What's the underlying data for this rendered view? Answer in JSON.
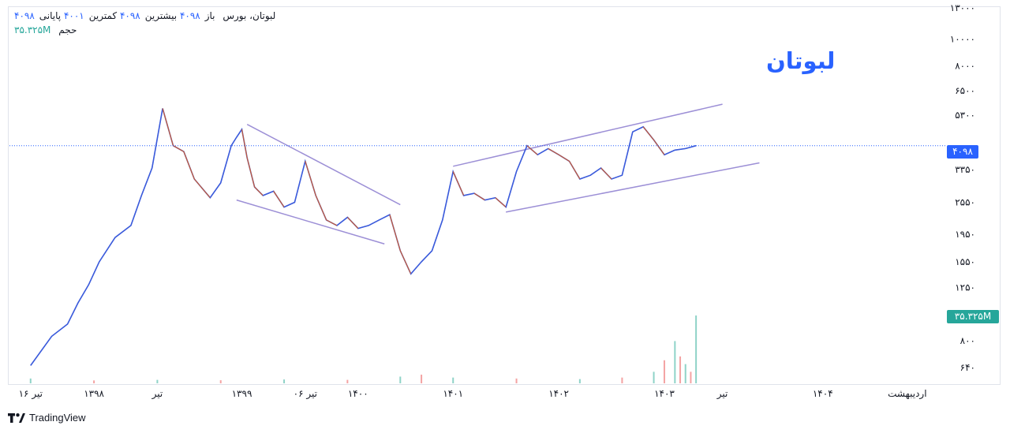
{
  "legend": {
    "symbol": "لبوتان، بورس",
    "open_label": "باز",
    "open_value": "۴۰۹۸",
    "high_label": "بیشترین",
    "high_value": "۴۰۹۸",
    "low_label": "کمترین",
    "low_value": "۴۰۰۱",
    "close_label": "پایانی",
    "close_value": "۴۰۹۸",
    "volume_label": "حجم",
    "volume_value": "۳۵.۳۲۵M"
  },
  "title_overlay": "لبوتان",
  "badges": {
    "last_price": "۴۰۹۸",
    "volume": "۳۵.۳۲۵M",
    "last_price_color": "#2962ff",
    "volume_color": "#26a69a"
  },
  "watermark": {
    "text": "TradingView",
    "icon": "tradingview-logo-icon"
  },
  "colors": {
    "up": "#3b5bdb",
    "down": "#e8590c",
    "trendline": "#9c8fd6",
    "volume_up": "#8fd3c8",
    "volume_down": "#f4a3a3",
    "price_line": "#2962ff"
  },
  "chart_data": {
    "type": "line",
    "scale": "log",
    "grid": false,
    "legend_placement": "top-left",
    "ylim": [
      560,
      13000
    ],
    "price_axis": {
      "ticks": [
        13000,
        10000,
        8000,
        6500,
        5300,
        3350,
        2550,
        1950,
        1550,
        1250,
        800,
        640
      ],
      "labels": [
        "۱۳۰۰۰",
        "۱۰۰۰۰",
        "۸۰۰۰",
        "۶۵۰۰",
        "۵۳۰۰",
        "۳۳۵۰",
        "۲۵۵۰",
        "۱۹۵۰",
        "۱۵۵۰",
        "۱۲۵۰",
        "۸۰۰",
        "۶۴۰"
      ]
    },
    "time_axis": {
      "labels": [
        "۱۶ تیر",
        "۱۳۹۸",
        "تیر",
        "۱۳۹۹",
        "۰۶ تیر",
        "۱۴۰۰",
        "۱۴۰۱",
        "۱۴۰۲",
        "۱۴۰۳",
        "تیر",
        "۱۴۰۴",
        "اردیبهشت"
      ],
      "positions": [
        0,
        0.6,
        1.2,
        2.0,
        2.6,
        3.1,
        4.0,
        5.0,
        6.0,
        6.55,
        7.5,
        8.3
      ]
    },
    "x_range": [
      -0.2,
      8.6
    ],
    "price_series": {
      "name": "لبوتان",
      "x": [
        0.0,
        0.2,
        0.35,
        0.45,
        0.55,
        0.65,
        0.8,
        0.95,
        1.05,
        1.15,
        1.25,
        1.35,
        1.45,
        1.55,
        1.7,
        1.8,
        1.9,
        1.95,
        2.0,
        2.05,
        2.12,
        2.2,
        2.3,
        2.4,
        2.5,
        2.6,
        2.7,
        2.8,
        2.9,
        3.0,
        3.1,
        3.2,
        3.3,
        3.4,
        3.5,
        3.6,
        3.7,
        3.8,
        3.9,
        4.0,
        4.1,
        4.2,
        4.3,
        4.4,
        4.5,
        4.6,
        4.7,
        4.8,
        4.9,
        5.0,
        5.1,
        5.2,
        5.3,
        5.4,
        5.5,
        5.6,
        5.7,
        5.8,
        5.9,
        6.0,
        6.1,
        6.2,
        6.3
      ],
      "y": [
        650,
        830,
        920,
        1100,
        1280,
        1550,
        1900,
        2100,
        2700,
        3400,
        5600,
        4100,
        3900,
        3100,
        2650,
        3000,
        4100,
        4400,
        4700,
        3700,
        2900,
        2700,
        2800,
        2450,
        2550,
        3600,
        2700,
        2200,
        2100,
        2250,
        2050,
        2100,
        2200,
        2300,
        1700,
        1400,
        1550,
        1700,
        2200,
        3300,
        2700,
        2750,
        2600,
        2650,
        2450,
        3300,
        4100,
        3800,
        4000,
        3800,
        3600,
        3100,
        3200,
        3400,
        3100,
        3200,
        4600,
        4800,
        4300,
        3800,
        3950,
        4000,
        4098
      ]
    },
    "volume_series": {
      "name": "حجم",
      "unit": "M",
      "x": [
        0.0,
        0.6,
        1.2,
        1.8,
        2.4,
        3.0,
        3.5,
        3.7,
        4.0,
        4.6,
        5.2,
        5.6,
        5.9,
        6.0,
        6.1,
        6.15,
        6.2,
        6.25,
        6.3
      ],
      "values": [
        2.5,
        1.5,
        1.8,
        1.6,
        2.0,
        1.8,
        3.5,
        4.5,
        3.0,
        2.5,
        2.2,
        3.0,
        6.0,
        12.0,
        22.0,
        14.0,
        10.0,
        6.0,
        35.325
      ]
    },
    "last_price": 4098,
    "last_volume": 35.325,
    "trendlines": [
      {
        "name": "falling-channel-upper",
        "from": [
          2.05,
          4900
        ],
        "to": [
          3.5,
          2500
        ]
      },
      {
        "name": "falling-channel-lower",
        "from": [
          1.95,
          2600
        ],
        "to": [
          3.35,
          1800
        ]
      },
      {
        "name": "rising-channel-upper",
        "from": [
          4.0,
          3450
        ],
        "to": [
          6.55,
          5800
        ]
      },
      {
        "name": "rising-channel-lower",
        "from": [
          4.5,
          2350
        ],
        "to": [
          6.9,
          3550
        ]
      }
    ]
  }
}
